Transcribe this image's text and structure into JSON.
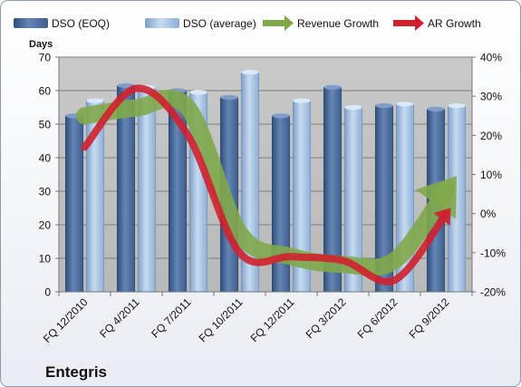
{
  "chart_data": {
    "type": "bar",
    "company": "Entegris",
    "ylabel": "Days",
    "categories": [
      "FQ 12/2010",
      "FQ 4/2011",
      "FQ 7/2011",
      "FQ 10/2011",
      "FQ 12/2011",
      "FQ 3/2012",
      "FQ 6/2012",
      "FQ 9/2012"
    ],
    "bar_series": [
      {
        "name": "DSO (EOQ)",
        "values": [
          52.5,
          61.5,
          60.0,
          58.0,
          52.5,
          61.0,
          55.5,
          54.5
        ]
      },
      {
        "name": "DSO (average)",
        "values": [
          57.0,
          61.0,
          59.5,
          65.5,
          57.0,
          55.0,
          56.0,
          55.5
        ]
      }
    ],
    "line_series": [
      {
        "name": "Revenue Growth",
        "values": [
          25,
          27,
          27,
          -5,
          -11,
          -13,
          -12,
          6
        ]
      },
      {
        "name": "AR Growth",
        "values": [
          17,
          32,
          20,
          -10,
          -11,
          -12,
          -17,
          0
        ]
      }
    ],
    "ylim": [
      0,
      70
    ],
    "y_ticks": [
      0,
      10,
      20,
      30,
      40,
      50,
      60,
      70
    ],
    "y2lim": [
      -20,
      40
    ],
    "y2_ticks": [
      "-20%",
      "-10%",
      "0%",
      "10%",
      "20%",
      "30%",
      "40%"
    ],
    "y2_values": [
      -20,
      -10,
      0,
      10,
      20,
      30,
      40
    ],
    "grid": true,
    "legend": "top",
    "colors": {
      "dso_eoq": "#4f6f9f",
      "dso_avg": "#a9c4e4",
      "revenue_growth": "#7fa84a",
      "ar_growth": "#d0202e",
      "plot_bg": "#c2c2c2",
      "page_bg": "#ffffff"
    }
  }
}
